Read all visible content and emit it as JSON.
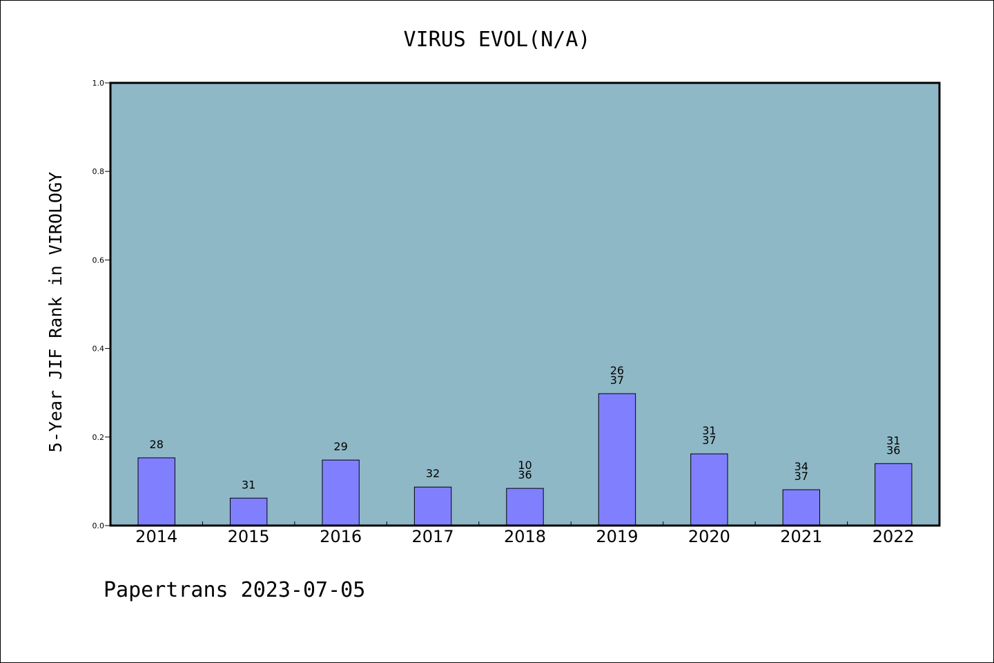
{
  "chart_data": {
    "type": "bar",
    "title": "VIRUS EVOL(N/A)",
    "ylabel": "5-Year JIF Rank in VIROLOGY",
    "xlabel": "",
    "ylim": [
      0,
      1.0
    ],
    "yticks": [
      "0.0",
      "0.2",
      "0.4",
      "0.6",
      "0.8",
      "1.0"
    ],
    "grid": false,
    "categories": [
      "2014",
      "2015",
      "2016",
      "2017",
      "2018",
      "2019",
      "2020",
      "2021",
      "2022"
    ],
    "values": [
      0.153,
      0.062,
      0.148,
      0.087,
      0.084,
      0.298,
      0.162,
      0.081,
      0.14
    ],
    "data_labels": [
      [
        "28"
      ],
      [
        "31"
      ],
      [
        "29"
      ],
      [
        "32"
      ],
      [
        "10",
        "36"
      ],
      [
        "26",
        "37"
      ],
      [
        "31",
        "37"
      ],
      [
        "34",
        "37"
      ],
      [
        "31",
        "36"
      ]
    ],
    "colors": {
      "plot_background": "#8fb8c6",
      "bar_fill": "#8080ff",
      "bar_stroke": "#000000"
    }
  },
  "footer": {
    "text": "Papertrans 2023-07-05"
  }
}
